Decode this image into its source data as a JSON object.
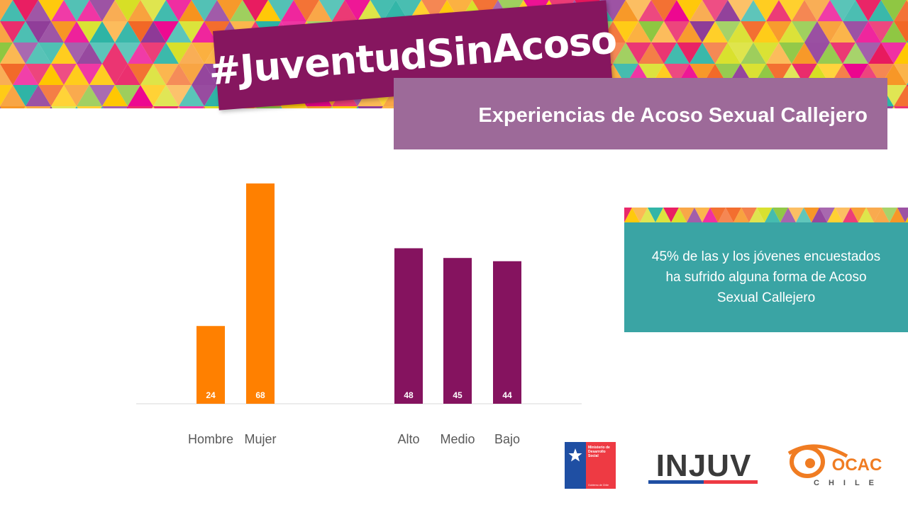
{
  "header": {
    "hashtag": "#JuventudSinAcoso",
    "subtitle": "Experiencias de Acoso Sexual Callejero"
  },
  "info": {
    "text": "45% de las y los jóvenes encuestados ha sufrido alguna forma de Acoso Sexual Callejero"
  },
  "chart_data": {
    "type": "bar",
    "categories": [
      "Hombre",
      "Mujer",
      "Alto",
      "Medio",
      "Bajo"
    ],
    "values": [
      24,
      68,
      48,
      45,
      44
    ],
    "groups": [
      [
        "Hombre",
        "Mujer"
      ],
      [
        "Alto",
        "Medio",
        "Bajo"
      ]
    ],
    "colors": [
      "#ff8000",
      "#ff8000",
      "#85135f",
      "#85135f",
      "#85135f"
    ],
    "ylim": [
      0,
      68
    ],
    "grid": false,
    "legend": "none"
  },
  "logos": {
    "gob_lines": [
      "Ministerio de",
      "Desarrollo",
      "Social"
    ],
    "gob_footer": "Gobierno de Chile",
    "injuv": "INJUV",
    "ocac_top": "OCAC",
    "ocac_bottom": "CHILE"
  },
  "colors": {
    "purple": "#86165f",
    "mauve": "#9d6a99",
    "orange": "#ff8000",
    "teal": "#3aa4a4"
  }
}
